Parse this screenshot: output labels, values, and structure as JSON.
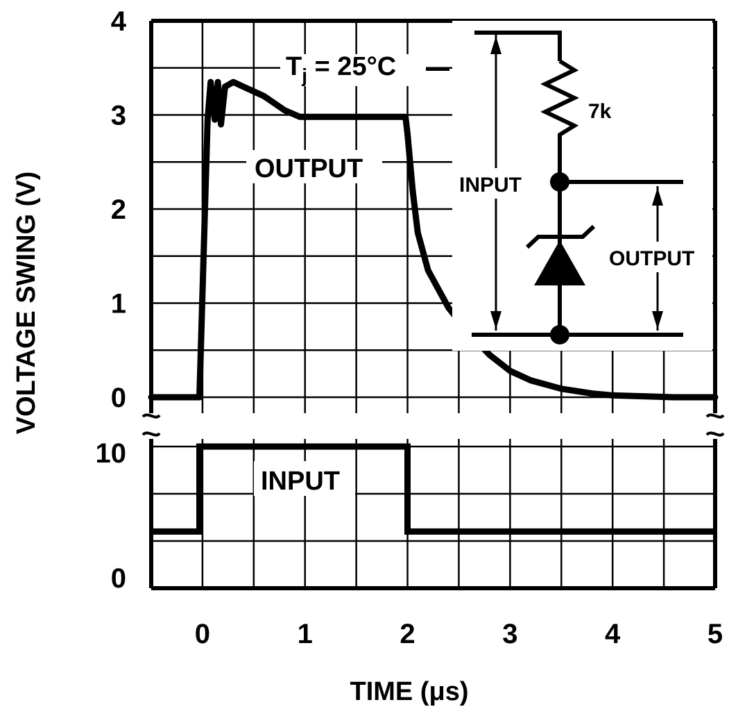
{
  "chart_data": {
    "type": "line",
    "title": "",
    "xlabel": "TIME (μs)",
    "ylabel": "VOLTAGE SWING (V)",
    "xlim": [
      -0.5,
      5
    ],
    "x_ticks": [
      "0",
      "1",
      "2",
      "3",
      "4",
      "5"
    ],
    "grid": true,
    "annotation": {
      "tj_main": "T",
      "tj_sub": "j",
      "tj_rest": " = 25°C"
    },
    "panels": [
      {
        "name": "output",
        "ylim": [
          0,
          4
        ],
        "y_ticks": [
          "0",
          "1",
          "2",
          "3",
          "4"
        ],
        "series": [
          {
            "name": "OUTPUT",
            "x": [
              -0.5,
              -0.03,
              0.05,
              0.08,
              0.12,
              0.15,
              0.18,
              0.22,
              0.3,
              0.4,
              0.6,
              0.8,
              0.95,
              1.2,
              1.5,
              1.8,
              1.98,
              2.0,
              2.05,
              2.1,
              2.2,
              2.4,
              2.6,
              2.8,
              3.0,
              3.2,
              3.5,
              3.8,
              4.0,
              4.3,
              4.6,
              5.0
            ],
            "y": [
              0,
              0,
              2.95,
              3.35,
              2.95,
              3.35,
              2.9,
              3.3,
              3.35,
              3.3,
              3.2,
              3.05,
              2.98,
              2.98,
              2.98,
              2.98,
              2.98,
              2.8,
              2.2,
              1.75,
              1.35,
              0.95,
              0.68,
              0.45,
              0.28,
              0.18,
              0.09,
              0.04,
              0.02,
              0.01,
              0,
              0
            ]
          }
        ]
      },
      {
        "name": "input",
        "ylim": [
          0,
          10
        ],
        "y_ticks": [
          "0",
          "10"
        ],
        "series": [
          {
            "name": "INPUT",
            "x": [
              -0.5,
              -0.03,
              -0.03,
              2.0,
              2.0,
              5.0
            ],
            "y": [
              4,
              4,
              10,
              10,
              4,
              4
            ]
          }
        ]
      }
    ],
    "inset_circuit": {
      "resistor_label": "7k",
      "input_label": "INPUT",
      "output_label": "OUTPUT"
    }
  }
}
